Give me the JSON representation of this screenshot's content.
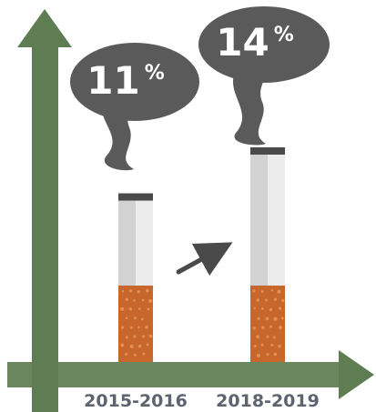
{
  "chart_data": {
    "type": "bar",
    "style": "cigarette-pictogram",
    "categories": [
      "2015-2016",
      "2018-2019"
    ],
    "values": [
      11,
      14
    ],
    "value_labels": [
      "11",
      "14"
    ],
    "value_unit": "%",
    "ylim": [
      0,
      16
    ],
    "grid": false,
    "trend_arrow": "up",
    "colors": {
      "axis": "#5e7d52",
      "smoke": "#5a5a5a",
      "filter": "#c8672c",
      "filter_dots": "#e0904f",
      "paper_light": "#ececec",
      "paper_shade": "#d2d2d2",
      "ash_band": "#4a4a4a",
      "category_text": "#5d6470",
      "value_text": "#ffffff",
      "trend_arrow": "#4a4a4a"
    }
  }
}
